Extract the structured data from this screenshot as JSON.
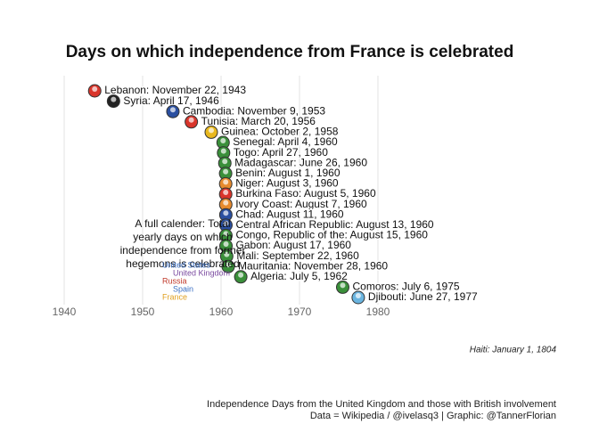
{
  "chart_data": {
    "type": "scatter",
    "title": "Days on which independence from France is celebrated",
    "labels": [
      "Lebanon: November 22, 1943",
      "Syria: April 17, 1946",
      "Cambodia: November 9, 1953",
      "Tunisia: March 20, 1956",
      "Guinea: October 2, 1958",
      "Senegal: April 4, 1960",
      "Togo: April 27, 1960",
      "Madagascar: June 26, 1960",
      "Benin: August 1, 1960",
      "Niger: August 3, 1960",
      "Burkina Faso: August 5, 1960",
      "Ivory Coast: August 7, 1960",
      "Chad: August 11, 1960",
      "Central African Republic: August 13, 1960",
      "Congo, Republic of the: August 15, 1960",
      "Gabon: August 17, 1960",
      "Mali: September 22, 1960",
      "Mauritania: November 28, 1960",
      "Algeria: July 5, 1962",
      "Comoros: July 6, 1975",
      "Djibouti: June 27, 1977"
    ],
    "x": [
      1943.89,
      1946.29,
      1953.86,
      1956.21,
      1958.75,
      1960.26,
      1960.32,
      1960.48,
      1960.58,
      1960.59,
      1960.59,
      1960.6,
      1960.61,
      1960.62,
      1960.62,
      1960.63,
      1960.72,
      1960.91,
      1962.51,
      1975.51,
      1977.49
    ],
    "colors": [
      "#d9352b",
      "#222222",
      "#2a4fa0",
      "#d9352b",
      "#e8b81e",
      "#3a8f3a",
      "#3a8f3a",
      "#3a8f3a",
      "#3a8f3a",
      "#e68a2e",
      "#d9352b",
      "#e68a2e",
      "#2a4fa0",
      "#2a4fa0",
      "#3a8f3a",
      "#3a8f3a",
      "#3a8f3a",
      "#3a8f3a",
      "#3a8f3a",
      "#3a8f3a",
      "#6bb5e0"
    ],
    "xlim": [
      1935,
      2000
    ],
    "xticks": [
      1940,
      1950,
      1960,
      1970,
      1980
    ],
    "grid": true,
    "annotation": "A full calender: Total yearly days on which independence from former hegemons is celebrated",
    "inset_labels": [
      "United States",
      "United Kingdom",
      "Russia",
      "Spain",
      "France"
    ],
    "inset_colors": [
      "#3a6fc4",
      "#7a4aa0",
      "#c0392b",
      "#3a6fc4",
      "#e0a020"
    ],
    "footnote": "Haiti: January 1, 1804",
    "caption": [
      "Independence Days from the United Kingdom and those with British involvement",
      "Data = Wikipedia / @ivelasq3 | Graphic: @TannerFlorian"
    ]
  }
}
